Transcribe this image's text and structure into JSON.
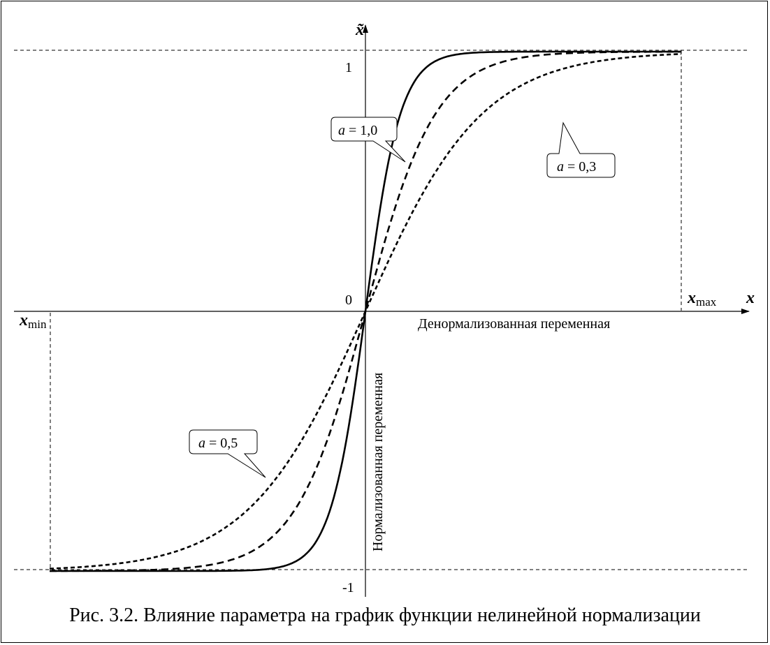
{
  "caption": "Рис. 3.2. Влияние параметра на график функции нелинейной нормализации",
  "chart_data": {
    "type": "line",
    "function": "tanh",
    "x_axis": {
      "symbol": "x",
      "label": "Денормализованная переменная",
      "min_label": "x",
      "min_sub": "min",
      "max_label": "x",
      "max_sub": "max"
    },
    "y_axis": {
      "symbol": "x̃",
      "label": "Нормализованная переменная",
      "ticks": [
        {
          "value": 1,
          "label": "1"
        },
        {
          "value": 0,
          "label": "0"
        },
        {
          "value": -1,
          "label": "-1"
        }
      ]
    },
    "xlim": [
      -1,
      1
    ],
    "ylim": [
      -1,
      1
    ],
    "series": [
      {
        "param": 1.0,
        "k": 9.0,
        "style": "solid"
      },
      {
        "param": 0.5,
        "k": 4.5,
        "style": "dashed"
      },
      {
        "param": 0.3,
        "k": 2.7,
        "style": "short-dashed"
      }
    ],
    "annotations": [
      {
        "text": "a = 1,0",
        "var": "a",
        "rest": " = 1,0"
      },
      {
        "text": "a = 0,5",
        "var": "a",
        "rest": " = 0,5"
      },
      {
        "text": "a = 0,3",
        "var": "a",
        "rest": " = 0,3"
      }
    ],
    "colors": {
      "line": "#000000",
      "background": "#ffffff"
    }
  }
}
